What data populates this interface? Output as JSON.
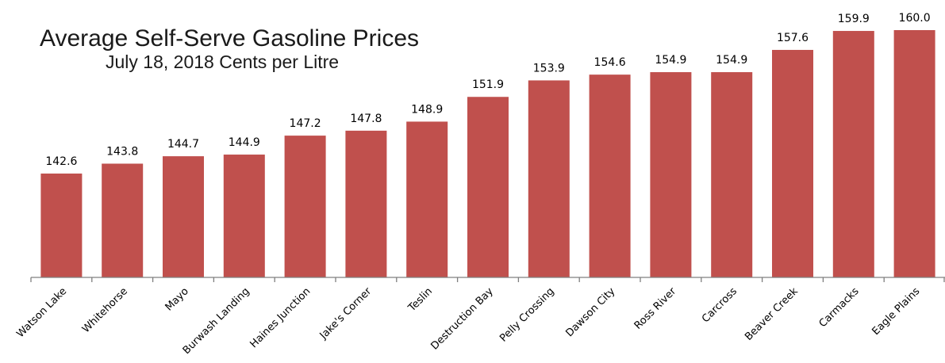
{
  "chart_data": {
    "type": "bar",
    "title": "Average Self-Serve Gasoline Prices",
    "subtitle": "July 18, 2018 Cents per Litre",
    "xlabel": "",
    "ylabel": "",
    "categories": [
      "Watson Lake",
      "Whitehorse",
      "Mayo",
      "Burwash Landing",
      "Haines Junction",
      "Jake's Corner",
      "Teslin",
      "Destruction Bay",
      "Pelly Crossing",
      "Dawson City",
      "Ross River",
      "Carcross",
      "Beaver Creek",
      "Carmacks",
      "Eagle Plains"
    ],
    "values": [
      142.6,
      143.8,
      144.7,
      144.9,
      147.2,
      147.8,
      148.9,
      151.9,
      153.9,
      154.6,
      154.9,
      154.9,
      157.6,
      159.9,
      160.0
    ],
    "value_labels": [
      "142.6",
      "143.8",
      "144.7",
      "144.9",
      "147.2",
      "147.8",
      "148.9",
      "151.9",
      "153.9",
      "154.6",
      "154.9",
      "154.9",
      "157.6",
      "159.9",
      "160.0"
    ],
    "ylim": [
      130,
      160
    ],
    "grid": false,
    "legend": "none",
    "colors": {
      "bar": "#C0504D",
      "axis": "#7F7F7F",
      "text": "#000000"
    }
  }
}
